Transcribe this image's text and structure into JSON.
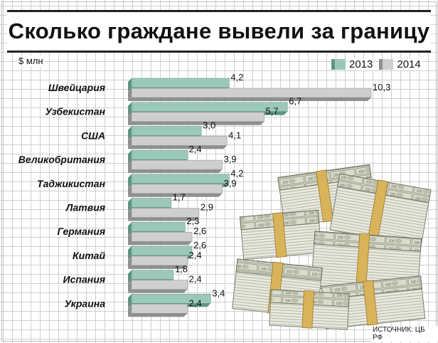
{
  "title": "Сколько граждане вывели за границу",
  "unit_label": "$ млн",
  "source": "ИСТОЧНИК: ЦБ РФ",
  "colors": {
    "s2013": "#9cc8ba",
    "s2013_side": "#5f9485",
    "s2014": "#cfcfcf",
    "s2014_side": "#8f8f8f"
  },
  "chart_data": {
    "type": "bar",
    "orientation": "horizontal",
    "title": "Сколько граждане вывели за границу",
    "ylabel": "$ млн",
    "categories": [
      "Швейцария",
      "Узбекистан",
      "США",
      "Великобритания",
      "Таджикистан",
      "Латвия",
      "Германия",
      "Китай",
      "Испания",
      "Украина"
    ],
    "series": [
      {
        "name": "2013",
        "values": [
          4.2,
          6.7,
          3.0,
          2.4,
          4.2,
          1.7,
          2.3,
          2.6,
          1.8,
          3.4
        ],
        "labels": [
          "4,2",
          "6,7",
          "3,0",
          "2,4",
          "4,2",
          "1,7",
          "2,3",
          "2,6",
          "1,8",
          "3,4"
        ]
      },
      {
        "name": "2014",
        "values": [
          10.3,
          5.7,
          4.1,
          3.9,
          3.9,
          2.9,
          2.6,
          2.4,
          2.4,
          2.4
        ],
        "labels": [
          "10,3",
          "5,7",
          "4,1",
          "3,9",
          "3,9",
          "2,9",
          "2,6",
          "2,4",
          "2,4",
          "2,4"
        ]
      }
    ],
    "xlim": [
      0,
      10.3
    ],
    "legend": "top-right",
    "grid": true
  }
}
